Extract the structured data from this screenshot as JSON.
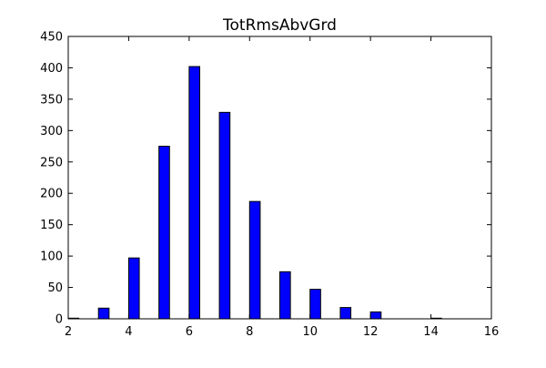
{
  "chart_data": {
    "type": "bar",
    "title": "TotRmsAbvGrd",
    "xlabel": "",
    "ylabel": "",
    "x": [
      2,
      3,
      4,
      5,
      6,
      7,
      8,
      9,
      10,
      11,
      12,
      14
    ],
    "values": [
      1,
      17,
      97,
      275,
      402,
      329,
      187,
      75,
      47,
      18,
      11,
      1
    ],
    "xlim": [
      2,
      16
    ],
    "ylim": [
      0,
      450
    ],
    "xticks": [
      "2",
      "4",
      "6",
      "8",
      "10",
      "12",
      "14",
      "16"
    ],
    "yticks": [
      "0",
      "50",
      "100",
      "150",
      "200",
      "250",
      "300",
      "350",
      "400",
      "450"
    ],
    "grid": false,
    "legend": "none",
    "colors": {
      "bar_fill": "#0000ff",
      "bar_edge": "#000000",
      "axes_edge": "#000000"
    }
  }
}
